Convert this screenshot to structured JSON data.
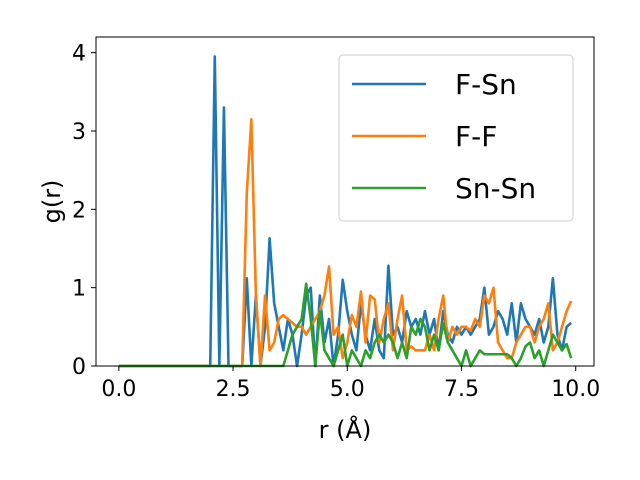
{
  "chart_data": {
    "type": "line",
    "title": "",
    "xlabel": "r (Å)",
    "ylabel": "g(r)",
    "xlim": [
      -0.5,
      10.4
    ],
    "ylim": [
      0,
      4.2
    ],
    "xticks": [
      0.0,
      2.5,
      5.0,
      7.5,
      10.0
    ],
    "xtick_labels": [
      "0.0",
      "2.5",
      "5.0",
      "7.5",
      "10.0"
    ],
    "yticks": [
      0,
      1,
      2,
      3,
      4
    ],
    "ytick_labels": [
      "0",
      "1",
      "2",
      "3",
      "4"
    ],
    "grid": false,
    "legend_position": "top-right",
    "series": [
      {
        "name": "F-Sn",
        "color": "#1f77b4",
        "x": [
          0.0,
          2.0,
          2.1,
          2.2,
          2.3,
          2.4,
          2.7,
          2.8,
          2.9,
          3.0,
          3.1,
          3.2,
          3.3,
          3.4,
          3.5,
          3.6,
          3.7,
          3.8,
          3.9,
          4.0,
          4.1,
          4.2,
          4.3,
          4.4,
          4.5,
          4.6,
          4.7,
          4.8,
          4.9,
          5.0,
          5.1,
          5.2,
          5.3,
          5.4,
          5.5,
          5.6,
          5.7,
          5.8,
          5.9,
          6.0,
          6.1,
          6.2,
          6.3,
          6.4,
          6.5,
          6.6,
          6.7,
          6.8,
          6.9,
          7.0,
          7.1,
          7.2,
          7.3,
          7.4,
          7.5,
          7.6,
          7.7,
          7.8,
          7.9,
          8.0,
          8.1,
          8.2,
          8.3,
          8.4,
          8.5,
          8.6,
          8.7,
          8.8,
          8.9,
          9.0,
          9.1,
          9.2,
          9.3,
          9.4,
          9.5,
          9.6,
          9.7,
          9.8,
          9.9
        ],
        "y": [
          0,
          0,
          3.95,
          0,
          3.3,
          0,
          0,
          1.12,
          0,
          0.9,
          0,
          0.5,
          1.63,
          0.8,
          0.5,
          0.2,
          0.6,
          0.4,
          0,
          0.4,
          0.9,
          1.0,
          0,
          0.9,
          0.3,
          0.6,
          0,
          0.4,
          1.1,
          0.7,
          0.4,
          0.2,
          0.8,
          0.4,
          0.2,
          0.6,
          0.2,
          0.1,
          1.28,
          0.4,
          0.5,
          0.3,
          0.7,
          0.5,
          0.6,
          0.4,
          0.7,
          0.4,
          0.6,
          0.2,
          0.7,
          0.4,
          0.3,
          0.5,
          0.4,
          0.5,
          0.4,
          0.5,
          0.6,
          1.0,
          0.4,
          0.5,
          0.7,
          0.6,
          0.4,
          0.8,
          0.3,
          0.8,
          0.6,
          0.5,
          0.4,
          0.6,
          0.3,
          0.5,
          1.12,
          0.4,
          0.2,
          0.5,
          0.55
        ]
      },
      {
        "name": "F-F",
        "color": "#ff7f0e",
        "x": [
          0.0,
          2.7,
          2.8,
          2.9,
          3.0,
          3.1,
          3.2,
          3.3,
          3.4,
          3.5,
          3.6,
          3.7,
          3.8,
          3.9,
          4.0,
          4.1,
          4.2,
          4.3,
          4.4,
          4.5,
          4.6,
          4.7,
          4.8,
          4.9,
          5.0,
          5.1,
          5.2,
          5.3,
          5.4,
          5.5,
          5.6,
          5.7,
          5.8,
          5.9,
          6.0,
          6.1,
          6.2,
          6.3,
          6.4,
          6.5,
          6.6,
          6.7,
          6.8,
          6.9,
          7.0,
          7.1,
          7.2,
          7.3,
          7.4,
          7.5,
          7.6,
          7.7,
          7.8,
          7.9,
          8.0,
          8.1,
          8.2,
          8.3,
          8.4,
          8.5,
          8.6,
          8.7,
          8.8,
          8.9,
          9.0,
          9.1,
          9.2,
          9.3,
          9.4,
          9.5,
          9.6,
          9.7,
          9.8,
          9.9
        ],
        "y": [
          0,
          0,
          2.2,
          3.15,
          0.9,
          0,
          0.9,
          0.2,
          0.3,
          0.6,
          0.65,
          0.6,
          0.55,
          0.5,
          0.5,
          0.4,
          0.5,
          0.6,
          0.7,
          0.9,
          1.27,
          0.4,
          0.5,
          0.1,
          0.3,
          0.65,
          0.5,
          0.95,
          0.3,
          0.9,
          0.85,
          0.3,
          0.6,
          0.8,
          0.2,
          0.6,
          0.9,
          0.2,
          0.25,
          0.2,
          0.2,
          0.2,
          0.4,
          0.2,
          0.6,
          0.9,
          0.3,
          0.5,
          0.4,
          0.5,
          0.5,
          0.45,
          0.6,
          0.5,
          0.9,
          0.8,
          1.0,
          0.3,
          0.2,
          0.1,
          0.1,
          0.3,
          0.4,
          0.5,
          0.5,
          0.3,
          0.5,
          0.6,
          0.8,
          0.2,
          0.3,
          0.5,
          0.7,
          0.83
        ]
      },
      {
        "name": "Sn-Sn",
        "color": "#2ca02c",
        "x": [
          0.0,
          3.6,
          3.7,
          3.8,
          3.9,
          4.0,
          4.1,
          4.2,
          4.3,
          4.4,
          4.5,
          4.6,
          4.7,
          4.8,
          4.9,
          5.0,
          5.1,
          5.2,
          5.3,
          5.4,
          5.5,
          5.6,
          5.7,
          5.8,
          5.9,
          6.0,
          6.1,
          6.2,
          6.3,
          6.4,
          6.5,
          6.6,
          6.7,
          6.8,
          6.9,
          7.0,
          7.1,
          7.2,
          7.3,
          7.4,
          7.5,
          7.6,
          7.7,
          7.8,
          7.9,
          8.0,
          8.1,
          8.2,
          8.3,
          8.4,
          8.5,
          8.6,
          8.7,
          8.8,
          8.9,
          9.0,
          9.1,
          9.2,
          9.3,
          9.4,
          9.5,
          9.6,
          9.7,
          9.8,
          9.9
        ],
        "y": [
          0,
          0,
          0.2,
          0.4,
          0.5,
          0.6,
          1.05,
          0.6,
          0,
          0.7,
          0.2,
          0.1,
          0,
          0.2,
          0.4,
          0,
          0.2,
          0.1,
          0,
          0.2,
          0.1,
          0.3,
          0.4,
          0.3,
          0.4,
          0.3,
          0.1,
          0.3,
          0.1,
          0.5,
          0.4,
          0.6,
          0.5,
          0.2,
          0.4,
          0.2,
          0.55,
          0.3,
          0.2,
          0.1,
          0,
          0.2,
          0,
          0.1,
          0.2,
          0.15,
          0.15,
          0.15,
          0.15,
          0.15,
          0.15,
          0.1,
          0,
          0.1,
          0.25,
          0.3,
          0.1,
          0.2,
          0,
          0.2,
          0.4,
          0.3,
          0.2,
          0.28,
          0.1
        ]
      }
    ]
  }
}
